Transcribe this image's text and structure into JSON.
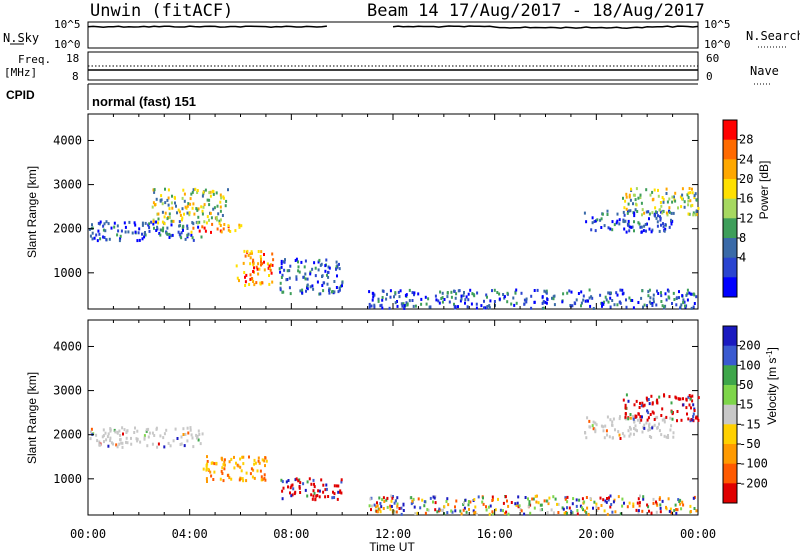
{
  "header": {
    "station": "Unwin (fitACF)",
    "beam_info": "Beam 14 17/Aug/2017 - 18/Aug/2017"
  },
  "top_panels": {
    "nsky_label": "N.Sky",
    "nsky_ticks": [
      "10^5",
      "10^0"
    ],
    "nsearch_label": "N.Search",
    "nsearch_ticks": [
      "10^5",
      "10^0"
    ],
    "freq_label_1": "Freq.",
    "freq_label_2": "[MHz]",
    "freq_ticks": [
      "18",
      "8"
    ],
    "nave_label": "Nave",
    "nave_ticks": [
      "60",
      "0"
    ],
    "cpid_label": "CPID",
    "cpid_value": "normal (fast) 151"
  },
  "chart_data": [
    {
      "type": "heatmap",
      "name": "power-panel",
      "ylabel": "Slant Range [km]",
      "y_ticks": [
        "4000",
        "3000",
        "2000",
        "1000"
      ],
      "ylim": [
        180,
        4600
      ],
      "x_ticks": [
        "00:00",
        "04:00",
        "08:00",
        "12:00",
        "16:00",
        "20:00",
        "00:00"
      ],
      "xlim_hours": [
        0,
        24
      ],
      "colorbar": {
        "label": "Power [dB]",
        "ticks": [
          "28",
          "24",
          "20",
          "16",
          "12",
          "8",
          "4"
        ],
        "colors": [
          "#ff0000",
          "#ff6a00",
          "#ffa800",
          "#ffe000",
          "#a6d860",
          "#3e9e5a",
          "#3a6aa8",
          "#2a44d0",
          "#0000ff"
        ]
      },
      "echo_regions": [
        {
          "t0": 0.0,
          "t1": 4.5,
          "r0": 1700,
          "r1": 2150,
          "level": "low"
        },
        {
          "t0": 2.5,
          "t1": 5.5,
          "r0": 2100,
          "r1": 2900,
          "level": "mid"
        },
        {
          "t0": 4.0,
          "t1": 6.0,
          "r0": 1900,
          "r1": 2100,
          "level": "high"
        },
        {
          "t0": 5.8,
          "t1": 7.3,
          "r0": 700,
          "r1": 1500,
          "level": "high"
        },
        {
          "t0": 7.5,
          "t1": 10.0,
          "r0": 500,
          "r1": 1300,
          "level": "low"
        },
        {
          "t0": 11.0,
          "t1": 24.0,
          "r0": 180,
          "r1": 600,
          "level": "low"
        },
        {
          "t0": 19.5,
          "t1": 23.0,
          "r0": 1900,
          "r1": 2400,
          "level": "low"
        },
        {
          "t0": 21.0,
          "t1": 24.0,
          "r0": 2300,
          "r1": 2900,
          "level": "mid"
        }
      ]
    },
    {
      "type": "heatmap",
      "name": "velocity-panel",
      "ylabel": "Slant Range [km]",
      "y_ticks": [
        "4000",
        "3000",
        "2000",
        "1000"
      ],
      "ylim": [
        180,
        4600
      ],
      "x_ticks": [
        "00:00",
        "04:00",
        "08:00",
        "12:00",
        "16:00",
        "20:00",
        "00:00"
      ],
      "xlim_hours": [
        0,
        24
      ],
      "xlabel": "Time UT",
      "colorbar": {
        "label": "Velocity [m s",
        "label_sup": "-1",
        "label_end": "]",
        "ticks": [
          "200",
          "100",
          "50",
          "15",
          "-15",
          "-50",
          "-100",
          "-200"
        ],
        "colors": [
          "#1a1ac0",
          "#3a5ad0",
          "#3ea64a",
          "#7ed64a",
          "#c8c8c8",
          "#ffd000",
          "#ff9a00",
          "#ff5a00",
          "#e00000"
        ]
      },
      "echo_regions": [
        {
          "t0": 0.0,
          "t1": 4.5,
          "r0": 1700,
          "r1": 2150,
          "level": "zero"
        },
        {
          "t0": 4.5,
          "t1": 7.0,
          "r0": 900,
          "r1": 1500,
          "level": "neg"
        },
        {
          "t0": 7.5,
          "t1": 10.0,
          "r0": 500,
          "r1": 1000,
          "level": "strongneg"
        },
        {
          "t0": 11.0,
          "t1": 24.0,
          "r0": 180,
          "r1": 600,
          "level": "mixed"
        },
        {
          "t0": 19.5,
          "t1": 23.0,
          "r0": 1900,
          "r1": 2400,
          "level": "zero"
        },
        {
          "t0": 21.0,
          "t1": 24.0,
          "r0": 2300,
          "r1": 2900,
          "level": "strongneg"
        }
      ]
    }
  ]
}
